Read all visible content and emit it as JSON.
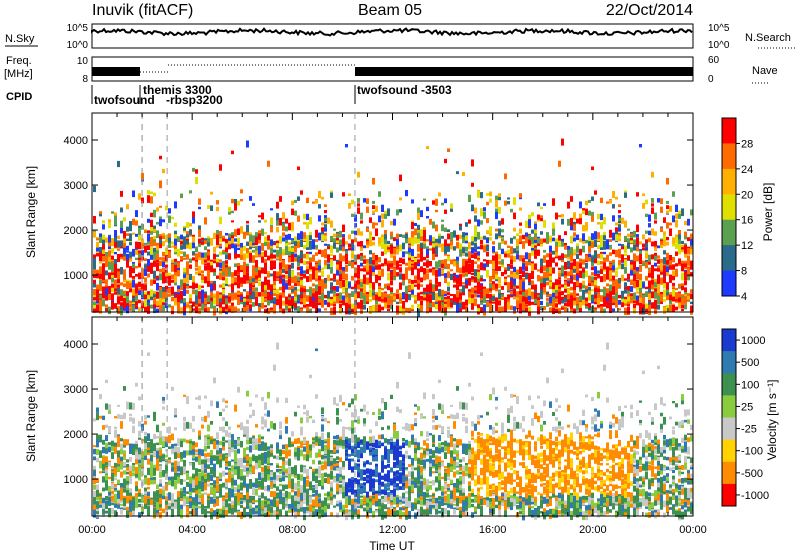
{
  "header": {
    "station": "Inuvik (fitACF)",
    "beam": "Beam 05",
    "date": "22/Oct/2014"
  },
  "summary": {
    "nsky_label": "N.Sky",
    "nsky_ticks": [
      "10^5",
      "10^0"
    ],
    "nsearch_label": "N.Search",
    "nsearch_ticks": [
      "10^5",
      "10^0"
    ],
    "freq_label": "Freq.",
    "freq_unit": "[MHz]",
    "freq_ticks": [
      "10",
      "8"
    ],
    "nave_label": "Nave",
    "nave_ticks": [
      "60",
      "0"
    ],
    "cpid_label": "CPID",
    "cpid_segments": [
      {
        "label": "twofsound",
        "start": 0.0
      },
      {
        "label": "themis 3300",
        "start": 2.0
      },
      {
        "label": "-rbsp3200",
        "start": 2.0
      },
      {
        "label": "twofsound  -3503",
        "start": 10.5
      }
    ]
  },
  "chart_data": [
    {
      "type": "heatmap",
      "title": "",
      "xlabel": "",
      "ylabel": "Slant Range [km]",
      "xlim": [
        0,
        24
      ],
      "ylim": [
        180,
        4600
      ],
      "yticks": [
        1000,
        2000,
        3000,
        4000
      ],
      "colorbar": {
        "label": "Power [dB]",
        "ticks": [
          "28",
          "24",
          "20",
          "16",
          "12",
          "8",
          "4"
        ],
        "colors": [
          "#ff0000",
          "#ff6a00",
          "#ffb000",
          "#e0e000",
          "#5aa050",
          "#2a6a8a",
          "#1f3aff"
        ]
      }
    },
    {
      "type": "heatmap",
      "title": "",
      "xlabel": "Time UT",
      "ylabel": "Slant Range [km]",
      "xlim": [
        0,
        24
      ],
      "ylim": [
        180,
        4600
      ],
      "xticks": [
        "00:00",
        "04:00",
        "08:00",
        "12:00",
        "16:00",
        "20:00",
        "00:00"
      ],
      "yticks": [
        1000,
        2000,
        3000,
        4000
      ],
      "colorbar": {
        "label": "Velocity [m s⁻¹]",
        "ticks": [
          "1000",
          "500",
          "100",
          "25",
          "-25",
          "-100",
          "-500",
          "-1000"
        ],
        "colors": [
          "#1a3ad0",
          "#2f7ab0",
          "#3c9050",
          "#8acc40",
          "#c8c8c8",
          "#ffd200",
          "#ff8c00",
          "#ff0000"
        ]
      }
    }
  ]
}
